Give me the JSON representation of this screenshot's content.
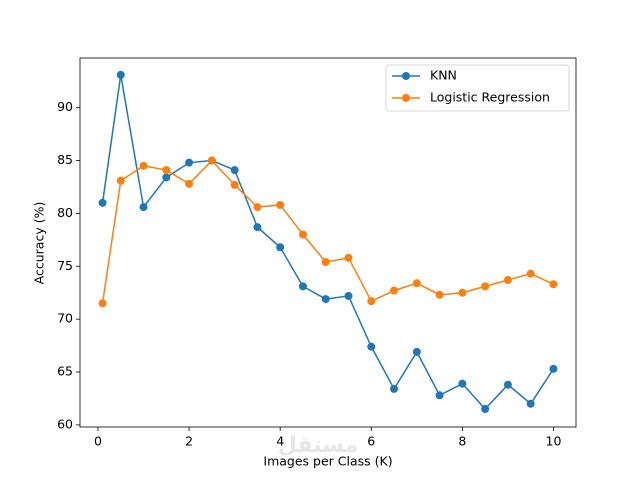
{
  "chart_data": {
    "type": "line",
    "x_label": "Images per Class (K)",
    "y_label": "Accuracy (%)",
    "x": [
      0.1,
      0.5,
      1,
      1.5,
      2,
      2.5,
      3,
      3.5,
      4,
      4.5,
      5,
      5.5,
      6,
      6.5,
      7,
      7.5,
      8,
      8.5,
      9,
      9.5,
      10
    ],
    "series": [
      {
        "name": "KNN",
        "color": "#1f77b4",
        "values": [
          81.0,
          93.1,
          80.6,
          83.4,
          84.8,
          85.0,
          84.1,
          78.7,
          76.8,
          73.1,
          71.9,
          72.2,
          67.4,
          63.4,
          66.9,
          62.8,
          63.9,
          61.5,
          63.8,
          62.0,
          65.3
        ]
      },
      {
        "name": "Logistic Regression",
        "color": "#ff7f0e",
        "values": [
          71.5,
          83.1,
          84.5,
          84.1,
          82.8,
          85.0,
          82.7,
          80.6,
          80.8,
          78.0,
          75.4,
          75.8,
          71.7,
          72.7,
          73.4,
          72.3,
          72.5,
          73.1,
          73.7,
          74.3,
          73.3
        ]
      }
    ],
    "xlim": [
      -0.395,
      10.495
    ],
    "xticks": [
      0,
      2,
      4,
      6,
      8,
      10
    ],
    "ylim": [
      59.8,
      94.7
    ],
    "yticks": [
      60,
      65,
      70,
      75,
      80,
      85,
      90
    ],
    "legend": "upper right",
    "watermark": "مستقل"
  }
}
